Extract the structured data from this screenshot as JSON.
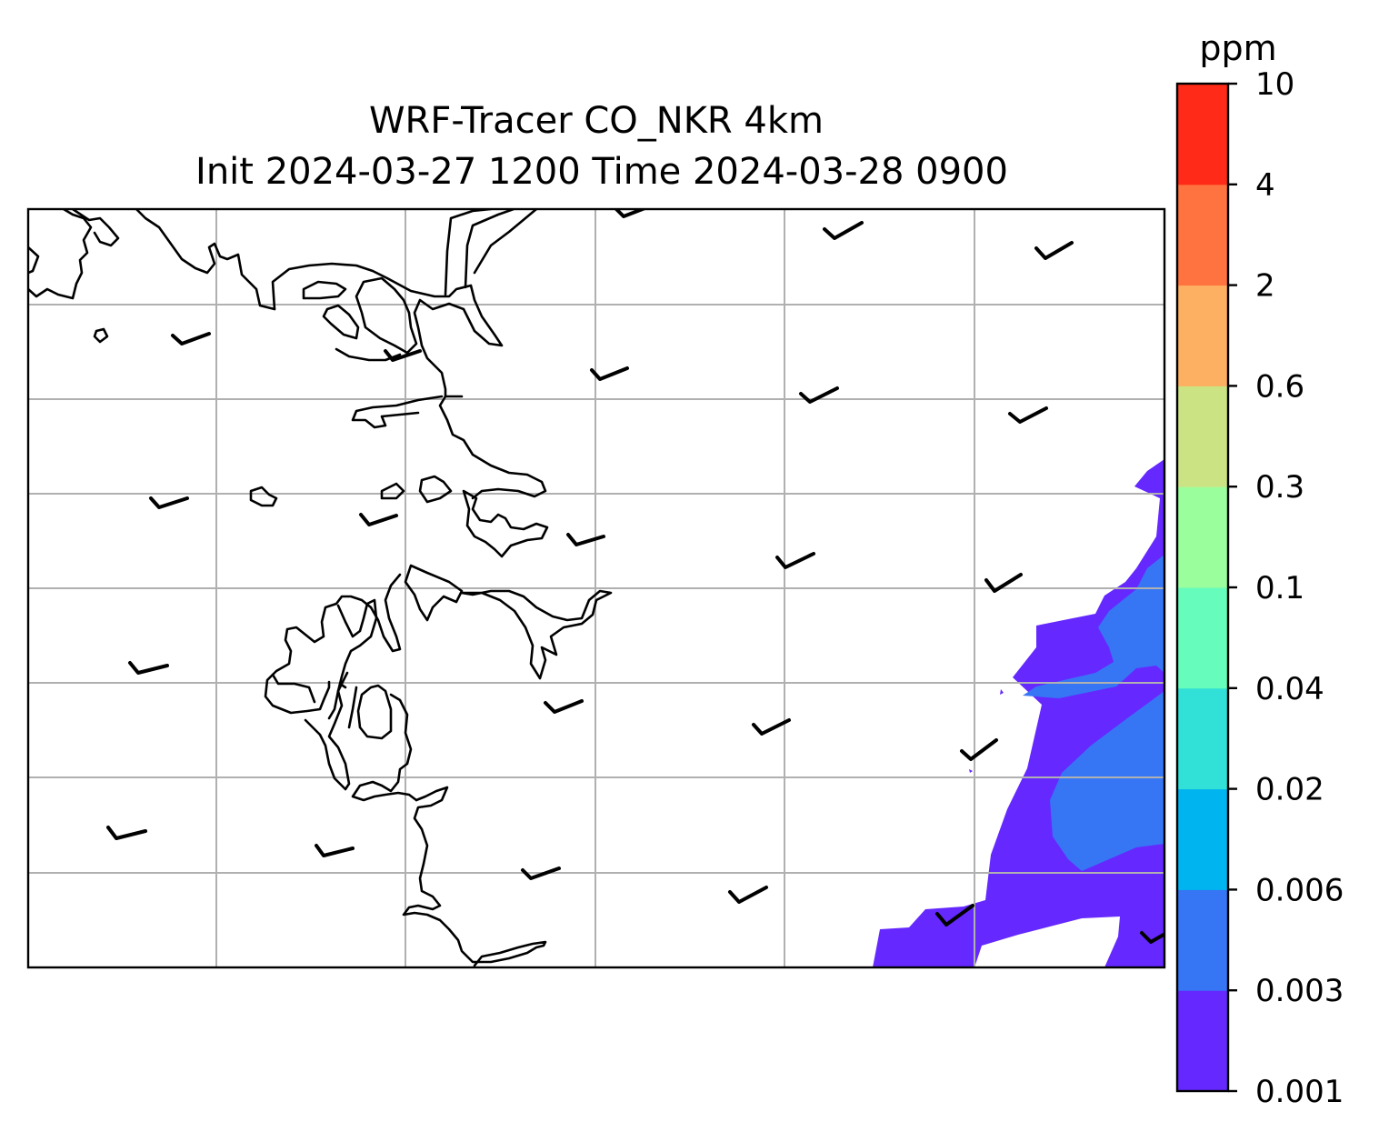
{
  "title": {
    "line1": "WRF-Tracer CO_NKR 4km",
    "line2": "Init 2024-03-27 1200 Time 2024-03-28 0900"
  },
  "colorbar": {
    "unit_label": "ppm",
    "levels": [
      "0.001",
      "0.003",
      "0.006",
      "0.02",
      "0.04",
      "0.1",
      "0.3",
      "0.6",
      "2",
      "4",
      "10"
    ],
    "colors": [
      "#6528ff",
      "#3676f5",
      "#00b4ef",
      "#31e0d6",
      "#66fcbb",
      "#9bfe9d",
      "#cce384",
      "#fdb062",
      "#fe733f",
      "#ff2a17"
    ]
  },
  "map": {
    "gridlines": true,
    "plume_colors": {
      "level_0.001": "#6528ff",
      "level_0.003": "#3676f5"
    },
    "plume_location": "east edge, lower right",
    "wind_barbs": "present (light winds, ~5 kt)"
  }
}
